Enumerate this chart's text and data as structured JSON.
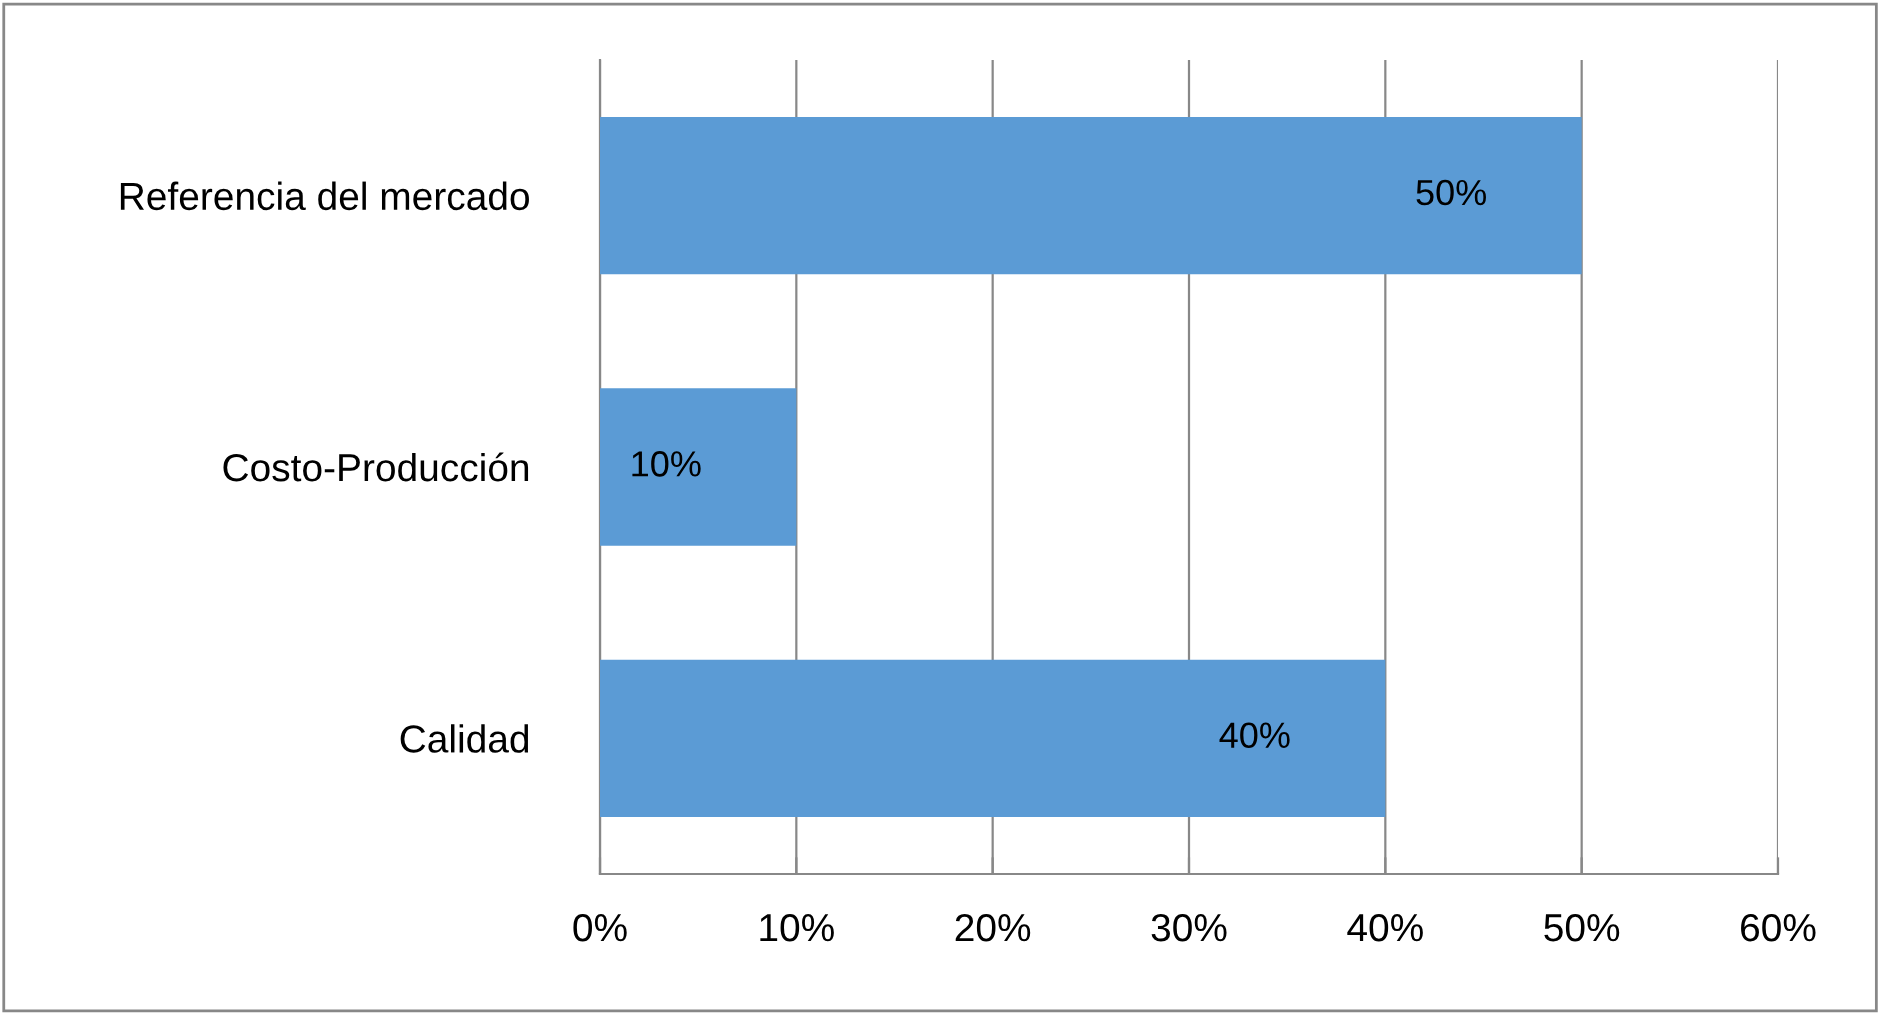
{
  "chart_data": {
    "type": "bar",
    "orientation": "horizontal",
    "categories": [
      "Referencia del mercado",
      "Costo-Producción",
      "Calidad"
    ],
    "values": [
      50,
      10,
      40
    ],
    "color": "#5b9bd5",
    "value_labels": [
      "50%",
      "10%",
      "40%"
    ],
    "xlim": [
      0,
      60
    ],
    "xticks": [
      {
        "value": 0,
        "label": "0%"
      },
      {
        "value": 10,
        "label": "10%"
      },
      {
        "value": 20,
        "label": "20%"
      },
      {
        "value": 30,
        "label": "30%"
      },
      {
        "value": 40,
        "label": "40%"
      },
      {
        "value": 50,
        "label": "50%"
      },
      {
        "value": 60,
        "label": "60%"
      }
    ],
    "grid": "x"
  }
}
